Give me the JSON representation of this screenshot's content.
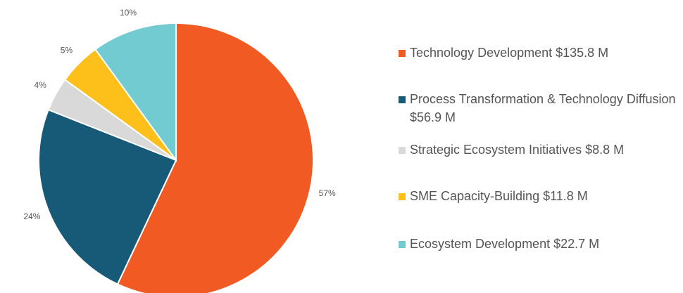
{
  "chart_data": {
    "type": "pie",
    "categories": [
      "Technology Development $135.8 M",
      "Process Transformation & Technology Diffusion $56.9 M",
      "Strategic Ecosystem Initiatives $8.8 M",
      "SME Capacity-Building $11.8 M",
      "Ecosystem Development $22.7 M"
    ],
    "values": [
      57,
      24,
      4,
      5,
      10
    ],
    "value_labels": [
      "57%",
      "24%",
      "4%",
      "5%",
      "10%"
    ],
    "colors": [
      "#f15a22",
      "#175a78",
      "#d9d9d9",
      "#fdc01a",
      "#72cbd0"
    ],
    "legend": "right"
  }
}
